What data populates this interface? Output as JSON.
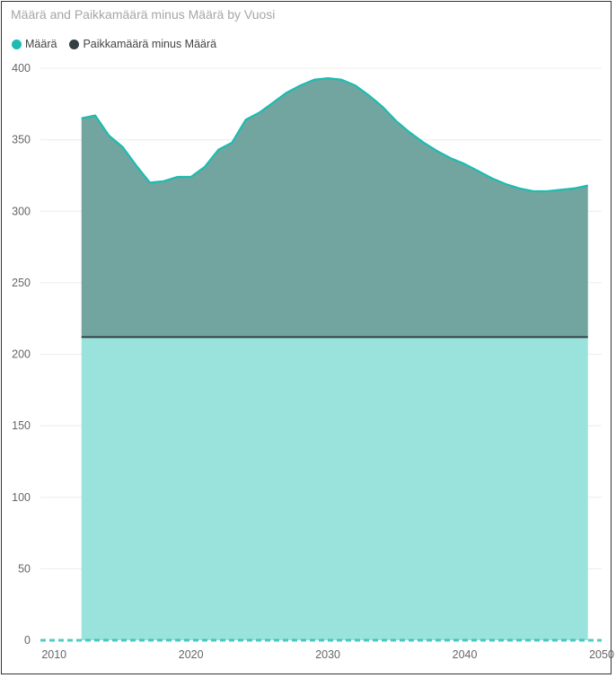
{
  "chart_data": {
    "type": "area",
    "title": "Määrä and Paikkamäärä minus Määrä by Vuosi",
    "xlabel": "",
    "ylabel": "",
    "xlim": [
      2009,
      2050
    ],
    "ylim": [
      0,
      400
    ],
    "x_ticks": [
      2010,
      2020,
      2030,
      2040,
      2050
    ],
    "y_ticks": [
      0,
      50,
      100,
      150,
      200,
      250,
      300,
      350,
      400
    ],
    "legend": "top-left",
    "grid": true,
    "series": [
      {
        "name": "Määrä",
        "color": "#1cbcb0",
        "fill": "#9ae3dd",
        "x": [
          2012,
          2049
        ],
        "values": [
          212,
          212
        ]
      },
      {
        "name": "Paikkamäärä minus Määrä",
        "color": "#333f45",
        "fill": "#72a5a0",
        "stacked_total_color": "#1cbcb0",
        "x": [
          2012,
          2013,
          2014,
          2015,
          2016,
          2017,
          2018,
          2019,
          2020,
          2021,
          2022,
          2023,
          2024,
          2025,
          2026,
          2027,
          2028,
          2029,
          2030,
          2031,
          2032,
          2033,
          2034,
          2035,
          2036,
          2037,
          2038,
          2039,
          2040,
          2041,
          2042,
          2043,
          2044,
          2045,
          2046,
          2047,
          2048,
          2049
        ],
        "totals": [
          365,
          367,
          353,
          345,
          332,
          320,
          321,
          324,
          324,
          331,
          343,
          348,
          364,
          369,
          376,
          383,
          388,
          392,
          393,
          392,
          388,
          381,
          373,
          363,
          355,
          348,
          342,
          337,
          333,
          328,
          323,
          319,
          316,
          314,
          314,
          315,
          316,
          318
        ]
      }
    ]
  }
}
